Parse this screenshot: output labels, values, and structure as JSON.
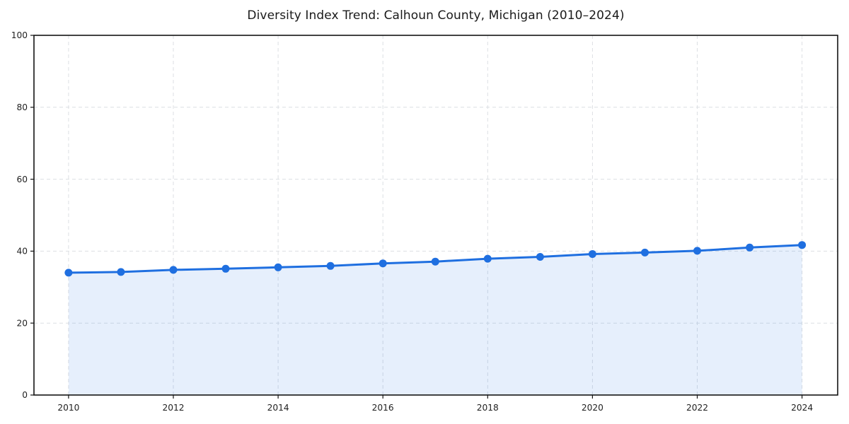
{
  "chart_data": {
    "type": "area",
    "title": "Diversity Index Trend: Calhoun County, Michigan (2010–2024)",
    "xlabel": "",
    "ylabel": "",
    "x": [
      2010,
      2011,
      2012,
      2013,
      2014,
      2015,
      2016,
      2017,
      2018,
      2019,
      2020,
      2021,
      2022,
      2023,
      2024
    ],
    "series": [
      {
        "name": "Diversity Index",
        "values": [
          34.0,
          34.2,
          34.8,
          35.1,
          35.5,
          35.9,
          36.6,
          37.1,
          37.9,
          38.4,
          39.2,
          39.6,
          40.1,
          41.0,
          41.7
        ]
      }
    ],
    "markers": true,
    "grid": "dashed",
    "legend_position": "none",
    "ylim": [
      0,
      100
    ],
    "xlim": [
      2009.34,
      2024.68
    ],
    "yticks": [
      0,
      20,
      40,
      60,
      80,
      100
    ],
    "xticks": [
      2010,
      2012,
      2014,
      2016,
      2018,
      2020,
      2022,
      2024
    ],
    "colors": {
      "line": "#1f6fe0",
      "fill": "rgba(31,111,224,0.11)",
      "grid": "#dcdfe3",
      "spine": "#141414",
      "text": "#1f1f1f",
      "background": "#ffffff"
    }
  }
}
